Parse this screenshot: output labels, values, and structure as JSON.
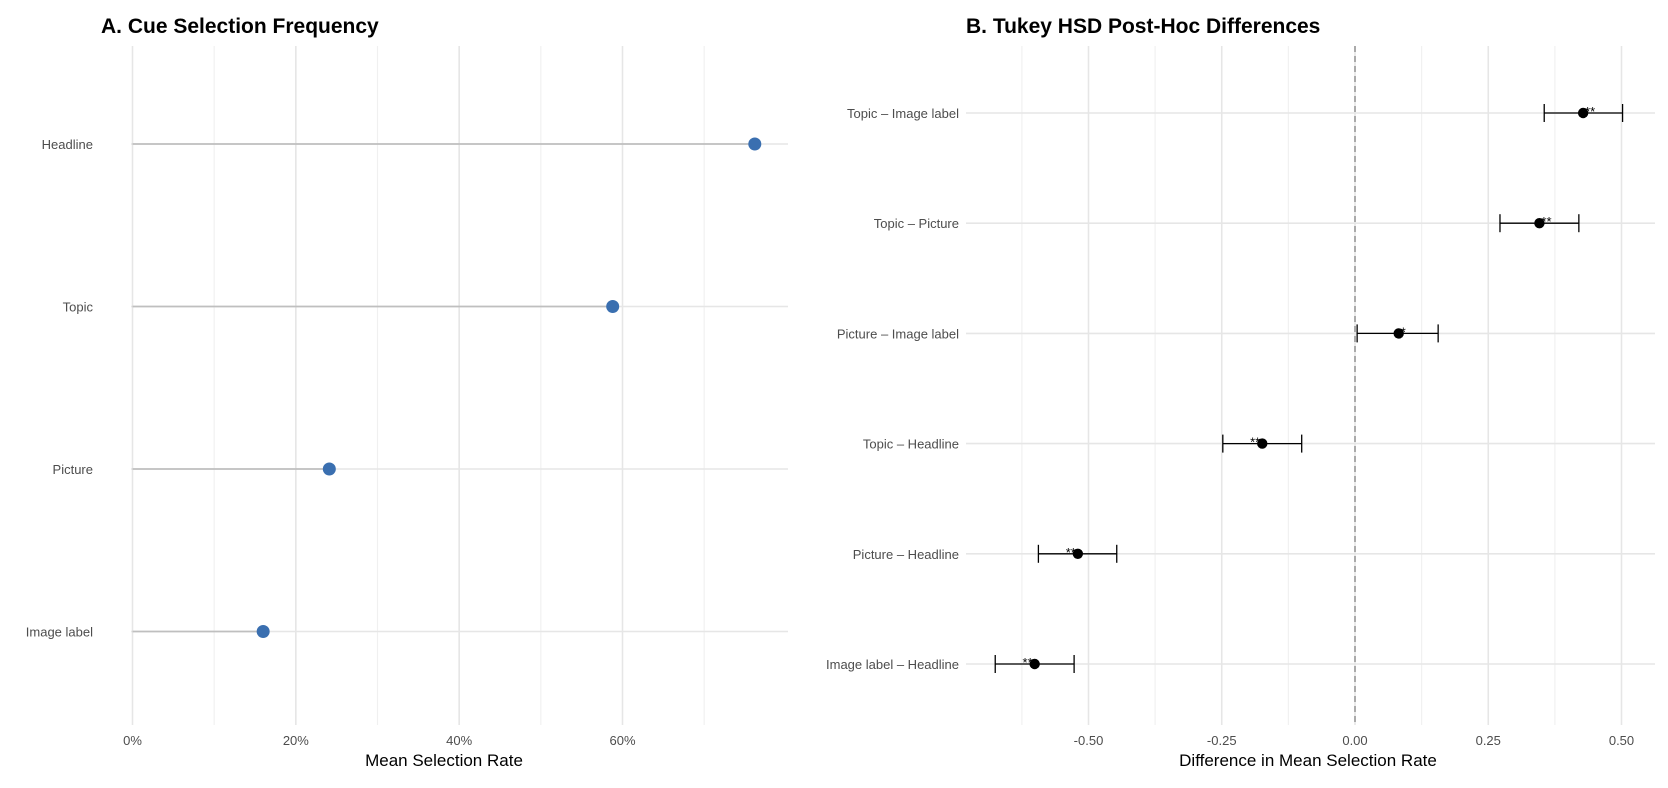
{
  "chart_data": [
    {
      "type": "lollipop",
      "title": "A. Cue Selection Frequency",
      "xlabel": "Mean Selection Rate",
      "ylabel": "",
      "xlim": [
        0,
        0.8
      ],
      "x_tick_values": [
        0,
        0.2,
        0.4,
        0.6
      ],
      "x_tick_labels": [
        "0%",
        "20%",
        "40%",
        "60%"
      ],
      "categories": [
        "Headline",
        "Topic",
        "Picture",
        "Image label"
      ],
      "values": [
        0.762,
        0.588,
        0.241,
        0.16
      ],
      "point_color": "#3a6fb0",
      "stem_color": "#bfbfbf",
      "grid": true
    },
    {
      "type": "errorbar",
      "title": "B. Tukey HSD Post-Hoc Differences",
      "xlabel": "Difference in Mean Selection Rate",
      "ylabel": "",
      "xlim": [
        -0.75,
        0.55
      ],
      "x_tick_values": [
        -0.5,
        -0.25,
        0,
        0.25,
        0.5
      ],
      "x_tick_labels": [
        "-0.50",
        "-0.25",
        "0.00",
        "0.25",
        "0.50"
      ],
      "reference_line": 0,
      "comparisons": [
        {
          "label": "Topic – Image label",
          "diff": 0.428,
          "lwr": 0.355,
          "upr": 0.502,
          "sig": "**"
        },
        {
          "label": "Topic – Picture",
          "diff": 0.346,
          "lwr": 0.272,
          "upr": 0.42,
          "sig": "**"
        },
        {
          "label": "Picture – Image label",
          "diff": 0.082,
          "lwr": 0.004,
          "upr": 0.156,
          "sig": "*"
        },
        {
          "label": "Topic – Headline",
          "diff": -0.174,
          "lwr": -0.248,
          "upr": -0.1,
          "sig": "**"
        },
        {
          "label": "Picture – Headline",
          "diff": -0.52,
          "lwr": -0.594,
          "upr": -0.447,
          "sig": "**"
        },
        {
          "label": "Image label – Headline",
          "diff": -0.601,
          "lwr": -0.675,
          "upr": -0.527,
          "sig": "**"
        }
      ],
      "point_color": "#000000",
      "grid": true
    }
  ]
}
